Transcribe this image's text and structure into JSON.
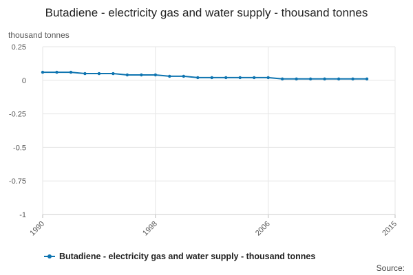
{
  "chart_data": {
    "type": "line",
    "title": "Butadiene - electricity gas and water supply - thousand tonnes",
    "ylabel": "thousand tonnes",
    "xlabel": "",
    "xlim": [
      1990,
      2015
    ],
    "ylim": [
      -1,
      0.25
    ],
    "yticks": [
      0.25,
      0,
      -0.25,
      -0.5,
      -0.75,
      -1
    ],
    "ytick_labels": [
      "0.25",
      "0",
      "-0.25",
      "-0.5",
      "-0.75",
      "-1"
    ],
    "xticks": [
      1990,
      1998,
      2006,
      2015
    ],
    "xtick_labels": [
      "1990",
      "1998",
      "2006",
      "2015"
    ],
    "grid": true,
    "legend_position": "bottom",
    "series": [
      {
        "name": "Butadiene - electricity gas and water supply - thousand tonnes",
        "color": "#0e74b0",
        "x": [
          1990,
          1991,
          1992,
          1993,
          1994,
          1995,
          1996,
          1997,
          1998,
          1999,
          2000,
          2001,
          2002,
          2003,
          2004,
          2005,
          2006,
          2007,
          2008,
          2009,
          2010,
          2011,
          2012,
          2013
        ],
        "values": [
          0.06,
          0.06,
          0.06,
          0.05,
          0.05,
          0.05,
          0.04,
          0.04,
          0.04,
          0.03,
          0.03,
          0.02,
          0.02,
          0.02,
          0.02,
          0.02,
          0.02,
          0.01,
          0.01,
          0.01,
          0.01,
          0.01,
          0.01,
          0.01
        ]
      }
    ],
    "source_label": "Source:"
  }
}
